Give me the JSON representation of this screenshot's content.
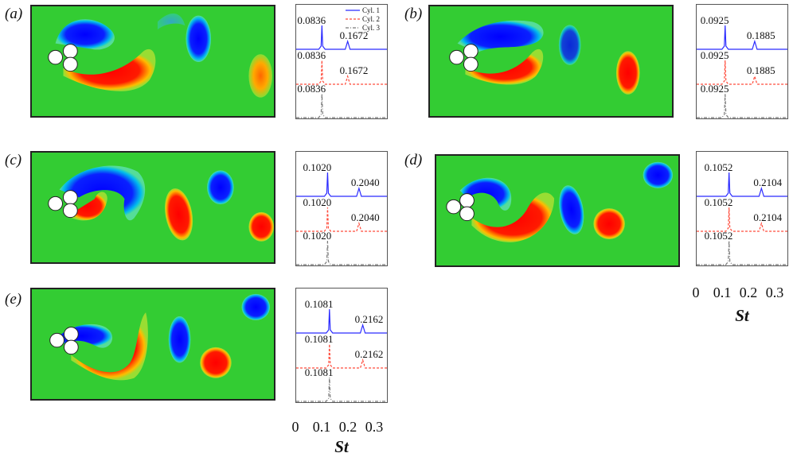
{
  "figure": {
    "xlabel": "St",
    "tick_labels": [
      "0",
      "0.1",
      "0.2",
      "0.3"
    ],
    "legend": [
      "Cyl. 1",
      "Cyl. 2",
      "Cyl. 3"
    ],
    "series_colors": [
      "#2b2bff",
      "#ff4a3a",
      "#777777"
    ],
    "field_colors": {
      "background": "#33cc33",
      "positive": "#ff0000",
      "negative": "#0000ff",
      "cylinder": "#ffffff"
    }
  },
  "panels": [
    {
      "label": "a",
      "peaks": {
        "cyl1": [
          "0.0836",
          "0.1672"
        ],
        "cyl2": [
          "0.0836",
          "0.1672"
        ],
        "cyl3": [
          "0.0836"
        ]
      }
    },
    {
      "label": "b",
      "peaks": {
        "cyl1": [
          "0.0925",
          "0.1885"
        ],
        "cyl2": [
          "0.0925",
          "0.1885"
        ],
        "cyl3": [
          "0.0925"
        ]
      }
    },
    {
      "label": "c",
      "peaks": {
        "cyl1": [
          "0.1020",
          "0.2040"
        ],
        "cyl2": [
          "0.1020",
          "0.2040"
        ],
        "cyl3": [
          "0.1020"
        ]
      }
    },
    {
      "label": "d",
      "peaks": {
        "cyl1": [
          "0.1052",
          "0.2104"
        ],
        "cyl2": [
          "0.1052",
          "0.2104"
        ],
        "cyl3": [
          "0.1052"
        ]
      }
    },
    {
      "label": "e",
      "peaks": {
        "cyl1": [
          "0.1081",
          "0.2162"
        ],
        "cyl2": [
          "0.1081",
          "0.2162"
        ],
        "cyl3": [
          "0.1081"
        ]
      }
    }
  ],
  "chart_data": [
    {
      "type": "line",
      "panel": "a",
      "xlabel": "St",
      "xlim": [
        0,
        0.3
      ],
      "series": [
        {
          "name": "Cyl. 1",
          "peaks_x": [
            0.0836,
            0.1672
          ]
        },
        {
          "name": "Cyl. 2",
          "peaks_x": [
            0.0836,
            0.1672
          ]
        },
        {
          "name": "Cyl. 3",
          "peaks_x": [
            0.0836
          ]
        }
      ]
    },
    {
      "type": "line",
      "panel": "b",
      "xlabel": "St",
      "xlim": [
        0,
        0.3
      ],
      "series": [
        {
          "name": "Cyl. 1",
          "peaks_x": [
            0.0925,
            0.1885
          ]
        },
        {
          "name": "Cyl. 2",
          "peaks_x": [
            0.0925,
            0.1885
          ]
        },
        {
          "name": "Cyl. 3",
          "peaks_x": [
            0.0925
          ]
        }
      ]
    },
    {
      "type": "line",
      "panel": "c",
      "xlabel": "St",
      "xlim": [
        0,
        0.3
      ],
      "series": [
        {
          "name": "Cyl. 1",
          "peaks_x": [
            0.102,
            0.204
          ]
        },
        {
          "name": "Cyl. 2",
          "peaks_x": [
            0.102,
            0.204
          ]
        },
        {
          "name": "Cyl. 3",
          "peaks_x": [
            0.102
          ]
        }
      ]
    },
    {
      "type": "line",
      "panel": "d",
      "xlabel": "St",
      "xlim": [
        0,
        0.3
      ],
      "series": [
        {
          "name": "Cyl. 1",
          "peaks_x": [
            0.1052,
            0.2104
          ]
        },
        {
          "name": "Cyl. 2",
          "peaks_x": [
            0.1052,
            0.2104
          ]
        },
        {
          "name": "Cyl. 3",
          "peaks_x": [
            0.1052
          ]
        }
      ]
    },
    {
      "type": "line",
      "panel": "e",
      "xlabel": "St",
      "xlim": [
        0,
        0.3
      ],
      "series": [
        {
          "name": "Cyl. 1",
          "peaks_x": [
            0.1081,
            0.2162
          ]
        },
        {
          "name": "Cyl. 2",
          "peaks_x": [
            0.1081,
            0.2162
          ]
        },
        {
          "name": "Cyl. 3",
          "peaks_x": [
            0.1081
          ]
        }
      ]
    }
  ]
}
